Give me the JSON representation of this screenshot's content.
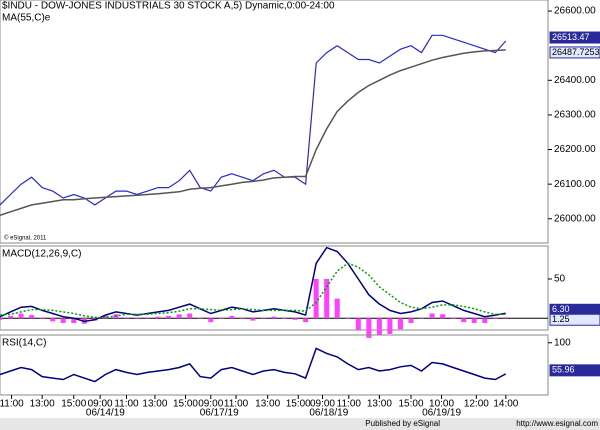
{
  "chart_data": {
    "type": "stock",
    "title": "$INDU - DOW-JONES INDUSTRIALS 30 STOCK A,5) Dynamic,0:00-24:00",
    "credit": "© eSignal, 2011",
    "footer": [
      "Published by eSignal",
      "http://www.esignal.com"
    ],
    "x": [
      0,
      1,
      2,
      3,
      4,
      5,
      6,
      7,
      8,
      9,
      10,
      11,
      12,
      13,
      14,
      15,
      16,
      17,
      18,
      19,
      20,
      21,
      22,
      23,
      24,
      25,
      26,
      27,
      28,
      29,
      30,
      31,
      32,
      33,
      34,
      35,
      36,
      37,
      38,
      39,
      40,
      41,
      42,
      43,
      44,
      45,
      46,
      47,
      48
    ],
    "xlim": [
      0,
      52
    ],
    "xticks": [
      {
        "value": 1.1,
        "label": "11:00"
      },
      {
        "value": 4,
        "label": "13:00"
      },
      {
        "value": 7,
        "label": "15:00"
      },
      {
        "value": 9.5,
        "label": "09:00"
      },
      {
        "value": 12,
        "label": "11:00"
      },
      {
        "value": 14.7,
        "label": "13:00"
      },
      {
        "value": 17.6,
        "label": "15:00"
      },
      {
        "value": 20,
        "label": "09:00"
      },
      {
        "value": 22.4,
        "label": "11:00"
      },
      {
        "value": 25.4,
        "label": "13:00"
      },
      {
        "value": 28.3,
        "label": "15:00"
      },
      {
        "value": 30.6,
        "label": "09:00"
      },
      {
        "value": 33.1,
        "label": "11:00"
      },
      {
        "value": 36,
        "label": "13:00"
      },
      {
        "value": 39,
        "label": "15:00"
      },
      {
        "value": 41.9,
        "label": "10:00"
      },
      {
        "value": 45.2,
        "label": "12:00"
      },
      {
        "value": 48,
        "label": "14:00"
      }
    ],
    "date_ticks": [
      {
        "value": 10,
        "label": "06/14/19"
      },
      {
        "value": 20.8,
        "label": "06/17/19"
      },
      {
        "value": 31.2,
        "label": "06/18/19"
      },
      {
        "value": 41.9,
        "label": "06/19/19"
      }
    ],
    "panels": [
      {
        "type": "line",
        "label": "MA(55,C)e",
        "ylim": [
          25930,
          26632
        ],
        "yticks": [
          {
            "value": 26000,
            "label": "26000.00"
          },
          {
            "value": 26100,
            "label": "26100.00"
          },
          {
            "value": 26200,
            "label": "26200.00"
          },
          {
            "value": 26300,
            "label": "26300.00"
          },
          {
            "value": 26400,
            "label": "26400.00"
          },
          {
            "value": 26600,
            "label": "26600.00"
          }
        ],
        "markers": [
          {
            "value": 26513.47,
            "label": "26513.47"
          },
          {
            "value": 26487.7253,
            "label": "26487.7253"
          }
        ],
        "series": [
          {
            "name": "Close",
            "color": "#2a2ac8",
            "values": [
              26040,
              26070,
              26100,
              26120,
              26090,
              26080,
              26060,
              26070,
              26060,
              26040,
              26060,
              26080,
              26080,
              26070,
              26080,
              26090,
              26090,
              26110,
              26140,
              26090,
              26080,
              26120,
              26130,
              26120,
              26110,
              26130,
              26140,
              26120,
              26120,
              26100,
              26450,
              26480,
              26500,
              26480,
              26460,
              26460,
              26450,
              26470,
              26490,
              26500,
              26480,
              26530,
              26530,
              26520,
              26510,
              26500,
              26490,
              26480,
              26513.47
            ]
          },
          {
            "name": "MA",
            "color": "#555555",
            "values": [
              26010,
              26020,
              26030,
              26040,
              26045,
              26050,
              26055,
              26055,
              26058,
              26060,
              26062,
              26064,
              26066,
              26068,
              26070,
              26072,
              26075,
              26078,
              26085,
              26088,
              26090,
              26095,
              26100,
              26105,
              26108,
              26112,
              26118,
              26120,
              26122,
              26122,
              26200,
              26260,
              26310,
              26340,
              26365,
              26385,
              26400,
              26415,
              26428,
              26438,
              26448,
              26458,
              26466,
              26472,
              26478,
              26482,
              26485,
              26486,
              26487.7253
            ]
          }
        ]
      },
      {
        "type": "macd",
        "label": "MACD(12,26,9,C)",
        "ylim": [
          -15,
          92
        ],
        "yticks": [
          50
        ],
        "markers": [
          {
            "value": 6.3,
            "label": "6.30"
          },
          {
            "value": 1.25,
            "label": "1.25"
          }
        ],
        "histogram": {
          "color": "#ff40ff",
          "values": [
            -2,
            3,
            6,
            4,
            -1,
            -4,
            -6,
            -6,
            -7,
            -3,
            3,
            5,
            1,
            -1,
            1,
            2,
            3,
            5,
            6,
            0,
            -5,
            0,
            3,
            0,
            -3,
            0,
            2,
            0,
            -2,
            -5,
            50,
            50,
            25,
            0,
            -15,
            -25,
            -22,
            -20,
            -14,
            -6,
            0,
            6,
            5,
            -1,
            -5,
            -6,
            -6,
            -1,
            1.25
          ]
        },
        "series": [
          {
            "name": "MACD",
            "color": "#000080",
            "values": [
              2,
              8,
              14,
              15,
              10,
              6,
              2,
              0,
              -4,
              -2,
              4,
              8,
              6,
              4,
              6,
              8,
              10,
              14,
              18,
              12,
              6,
              10,
              14,
              12,
              8,
              10,
              12,
              10,
              8,
              4,
              70,
              90,
              85,
              70,
              50,
              30,
              18,
              10,
              6,
              8,
              12,
              20,
              22,
              16,
              10,
              6,
              2,
              4,
              6.3
            ]
          },
          {
            "name": "Signal",
            "color": "#00a000",
            "values": [
              4,
              5,
              8,
              11,
              11,
              10,
              8,
              6,
              3,
              1,
              1,
              3,
              5,
              5,
              5,
              6,
              7,
              9,
              12,
              12,
              11,
              10,
              11,
              12,
              11,
              10,
              10,
              10,
              10,
              9,
              20,
              40,
              60,
              70,
              65,
              55,
              40,
              30,
              20,
              14,
              12,
              14,
              17,
              17,
              15,
              12,
              8,
              5,
              5.1
            ]
          }
        ]
      },
      {
        "type": "line",
        "label": "RSI(14,C)",
        "ylim": [
          26,
          111
        ],
        "yticks": [
          100
        ],
        "markers": [
          {
            "value": 55.96,
            "label": "55.96"
          }
        ],
        "series": [
          {
            "name": "RSI",
            "color": "#000080",
            "values": [
              55,
              60,
              65,
              62,
              52,
              50,
              48,
              55,
              50,
              45,
              55,
              62,
              58,
              55,
              58,
              60,
              62,
              65,
              70,
              52,
              50,
              62,
              65,
              60,
              55,
              60,
              62,
              58,
              56,
              50,
              92,
              85,
              80,
              70,
              62,
              65,
              60,
              62,
              66,
              68,
              60,
              72,
              70,
              65,
              60,
              55,
              50,
              48,
              55.96
            ]
          }
        ]
      }
    ]
  }
}
